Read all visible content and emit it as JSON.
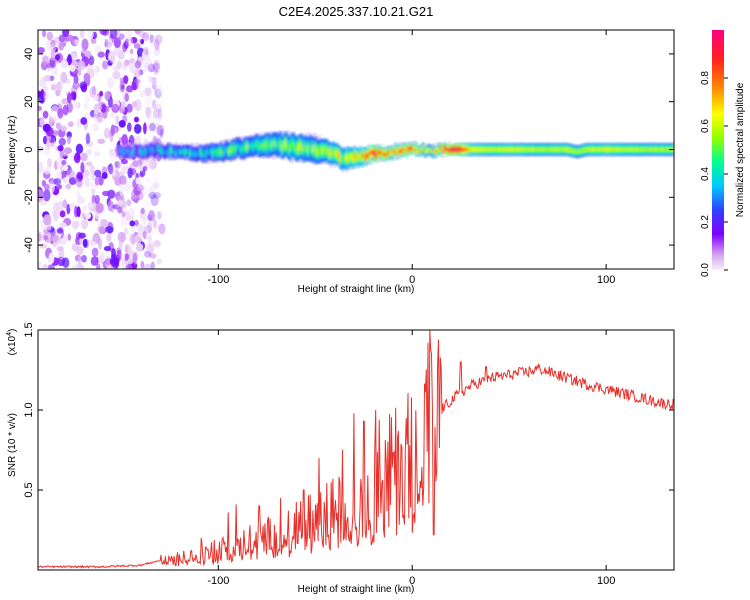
{
  "title": "C2E4.2025.337.10.21.G21",
  "chart_data": [
    {
      "type": "heatmap",
      "name": "spectrogram",
      "xlabel": "Height of straight line (km)",
      "ylabel": "Frequency (Hz)",
      "xlim": [
        -193,
        135
      ],
      "ylim": [
        -50,
        50
      ],
      "xticks": [
        -100,
        0,
        100
      ],
      "yticks": [
        -40,
        -20,
        0,
        20,
        40
      ],
      "colorbar": {
        "label": "Normalized spectral amplitude",
        "range": [
          0,
          1
        ],
        "ticks": [
          0.0,
          0.2,
          0.4,
          0.6,
          0.8
        ],
        "colors": [
          "#f5e6fa",
          "#d9a8f0",
          "#8000ff",
          "#3040ff",
          "#00c8ff",
          "#00ff90",
          "#90ff00",
          "#ffff00",
          "#ff9000",
          "#ff2020",
          "#ff0080"
        ]
      },
      "noise_region": {
        "x_range": [
          -193,
          -137
        ],
        "freq_range": [
          -50,
          50
        ]
      },
      "ridge": {
        "x": [
          -152,
          -140,
          -130,
          -120,
          -110,
          -100,
          -90,
          -80,
          -70,
          -60,
          -50,
          -40,
          -35,
          -30,
          -25,
          -20,
          -15,
          -10,
          -5,
          0,
          5,
          10,
          15,
          20,
          25,
          30,
          40,
          50,
          60,
          70,
          80,
          85,
          90,
          100,
          110,
          120,
          135
        ],
        "freq": [
          -1.0,
          -0.5,
          -0.5,
          -0.8,
          -1.5,
          -1.2,
          0.5,
          1.5,
          2.0,
          1.0,
          0.0,
          -2.0,
          -4.0,
          -3.5,
          -2.5,
          -2.0,
          -1.5,
          -1.0,
          -0.5,
          0.5,
          0.0,
          -0.5,
          -0.2,
          0.0,
          0.0,
          0.0,
          0.0,
          0.0,
          0.0,
          0.0,
          0.0,
          -1.0,
          0.0,
          0.0,
          0.0,
          0.0,
          0.0
        ],
        "amplitude": [
          0.25,
          0.3,
          0.35,
          0.4,
          0.4,
          0.45,
          0.45,
          0.5,
          0.5,
          0.55,
          0.5,
          0.6,
          0.6,
          0.65,
          0.7,
          0.85,
          0.8,
          0.7,
          0.75,
          0.8,
          0.6,
          0.55,
          0.8,
          1.0,
          0.9,
          0.65,
          0.6,
          0.62,
          0.6,
          0.58,
          0.6,
          0.55,
          0.6,
          0.62,
          0.6,
          0.58,
          0.58
        ],
        "spread": [
          2.5,
          3.0,
          3.0,
          3.0,
          3.5,
          4.0,
          4.5,
          5.0,
          5.5,
          6.0,
          6.0,
          5.0,
          5.0,
          4.5,
          4.0,
          3.5,
          3.0,
          3.0,
          3.0,
          2.5,
          2.5,
          2.5,
          2.5,
          2.5,
          3.0,
          3.0,
          3.0,
          3.0,
          3.0,
          3.0,
          3.0,
          3.0,
          3.0,
          3.0,
          3.0,
          3.0,
          3.0
        ]
      }
    },
    {
      "type": "line",
      "name": "snr",
      "xlabel": "Height of straight line (km)",
      "ylabel": "SNR (10 * v/v)",
      "scale_note": "(x10",
      "scale_exponent": "4",
      "xlim": [
        -193,
        135
      ],
      "ylim": [
        0,
        1.5
      ],
      "xticks": [
        -100,
        0,
        100
      ],
      "yticks": [
        0.5,
        1.0,
        1.5
      ],
      "ytick_labels": [
        "0.5",
        "1.0",
        "1.5"
      ],
      "color": "#e8302a",
      "envelope": {
        "x": [
          -193,
          -160,
          -140,
          -130,
          -120,
          -110,
          -100,
          -90,
          -80,
          -70,
          -60,
          -50,
          -40,
          -30,
          -20,
          -15,
          -10,
          -5,
          0,
          5,
          8,
          10,
          12,
          15,
          20,
          30,
          40,
          50,
          60,
          65,
          70,
          80,
          90,
          100,
          110,
          120,
          130,
          135
        ],
        "y": [
          0.02,
          0.02,
          0.03,
          0.06,
          0.08,
          0.1,
          0.13,
          0.16,
          0.2,
          0.23,
          0.28,
          0.32,
          0.38,
          0.42,
          0.5,
          0.58,
          0.66,
          0.72,
          0.76,
          0.82,
          0.9,
          0.94,
          0.95,
          1.0,
          1.06,
          1.15,
          1.2,
          1.22,
          1.24,
          1.26,
          1.24,
          1.2,
          1.16,
          1.13,
          1.1,
          1.07,
          1.04,
          1.04
        ]
      },
      "spikes": [
        {
          "x": -118,
          "y": 0.12
        },
        {
          "x": -109,
          "y": 0.2
        },
        {
          "x": -95,
          "y": 0.36
        },
        {
          "x": -91,
          "y": 0.41
        },
        {
          "x": -79,
          "y": 0.4
        },
        {
          "x": -68,
          "y": 0.45
        },
        {
          "x": -56,
          "y": 0.5
        },
        {
          "x": -48,
          "y": 0.7
        },
        {
          "x": -36,
          "y": 0.75
        },
        {
          "x": -30,
          "y": 0.98
        },
        {
          "x": -25,
          "y": 0.93
        },
        {
          "x": -19,
          "y": 1.0
        },
        {
          "x": -17,
          "y": 0.94
        },
        {
          "x": 8,
          "y": 1.42
        },
        {
          "x": 9,
          "y": 1.5
        },
        {
          "x": 10,
          "y": 1.35
        },
        {
          "x": 11,
          "y": 0.22
        },
        {
          "x": 15,
          "y": 1.27
        },
        {
          "x": 25,
          "y": 1.3
        },
        {
          "x": 38,
          "y": 1.27
        }
      ]
    }
  ]
}
